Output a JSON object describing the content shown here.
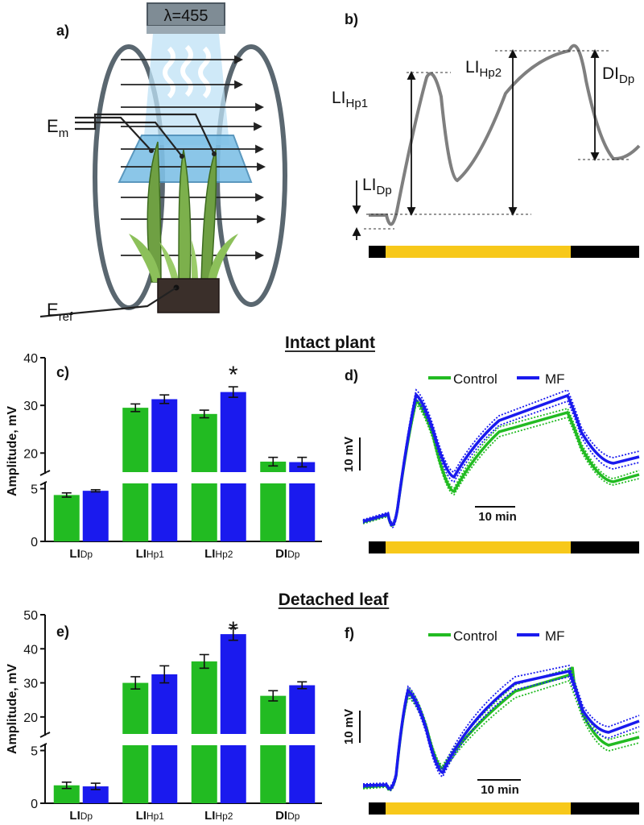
{
  "colors": {
    "control": "#22bb22",
    "mf": "#1a1aee",
    "light": "#f7c81a",
    "dark": "#000000",
    "trace": "#7f7f7f"
  },
  "panel_letters": {
    "a": "a)",
    "b": "b)",
    "c": "c)",
    "d": "d)",
    "e": "e)",
    "f": "f)"
  },
  "diagram_a": {
    "lamp_label": "λ=455",
    "em_label": "E",
    "em_sub": "m",
    "eref_label": "E",
    "eref_sub": "ref"
  },
  "diagram_b": {
    "labels": [
      {
        "main": "LI",
        "sub": "Hp1"
      },
      {
        "main": "LI",
        "sub": "Hp2"
      },
      {
        "main": "DI",
        "sub": "Dp"
      },
      {
        "main": "LI",
        "sub": "Dp"
      }
    ]
  },
  "sections": {
    "intact": "Intact plant",
    "detached": "Detached leaf"
  },
  "legend": {
    "control": "Control",
    "mf": "MF"
  },
  "scalebars": {
    "voltage": "10 mV",
    "time": "10 min"
  },
  "chart_data": [
    {
      "id": "c",
      "type": "bar",
      "section": "Intact plant",
      "ylabel": "Amplitude, mV",
      "axis_break": {
        "lower": [
          0,
          5.5
        ],
        "upper": [
          16,
          40
        ]
      },
      "yticks": [
        0,
        5,
        20,
        30,
        40
      ],
      "categories": [
        {
          "main": "LI",
          "sub": "Dp"
        },
        {
          "main": "LI",
          "sub": "Hp1"
        },
        {
          "main": "LI",
          "sub": "Hp2"
        },
        {
          "main": "DI",
          "sub": "Dp"
        }
      ],
      "series": [
        {
          "key": "control",
          "values": [
            4.4,
            29.5,
            28.2,
            18.2
          ],
          "errors": [
            0.2,
            0.8,
            0.8,
            0.9
          ]
        },
        {
          "key": "mf",
          "values": [
            4.8,
            31.3,
            32.8,
            18.1
          ],
          "errors": [
            0.1,
            0.9,
            1.1,
            1.0
          ]
        }
      ],
      "significance": [
        {
          "category": 2,
          "mark": "*"
        }
      ]
    },
    {
      "id": "e",
      "type": "bar",
      "section": "Detached leaf",
      "ylabel": "Amplitude, mV",
      "axis_break": {
        "lower": [
          0,
          5.5
        ],
        "upper": [
          15,
          50
        ]
      },
      "yticks": [
        0,
        5,
        20,
        30,
        40,
        50
      ],
      "categories": [
        {
          "main": "LI",
          "sub": "Dp"
        },
        {
          "main": "LI",
          "sub": "Hp1"
        },
        {
          "main": "LI",
          "sub": "Hp2"
        },
        {
          "main": "DI",
          "sub": "Dp"
        }
      ],
      "series": [
        {
          "key": "control",
          "values": [
            1.7,
            30.0,
            36.3,
            26.2
          ],
          "errors": [
            0.3,
            1.8,
            2.0,
            1.5
          ]
        },
        {
          "key": "mf",
          "values": [
            1.6,
            32.5,
            44.3,
            29.3
          ],
          "errors": [
            0.3,
            2.5,
            1.8,
            1.0
          ]
        }
      ],
      "significance": [
        {
          "category": 2,
          "mark": "*"
        }
      ]
    }
  ]
}
